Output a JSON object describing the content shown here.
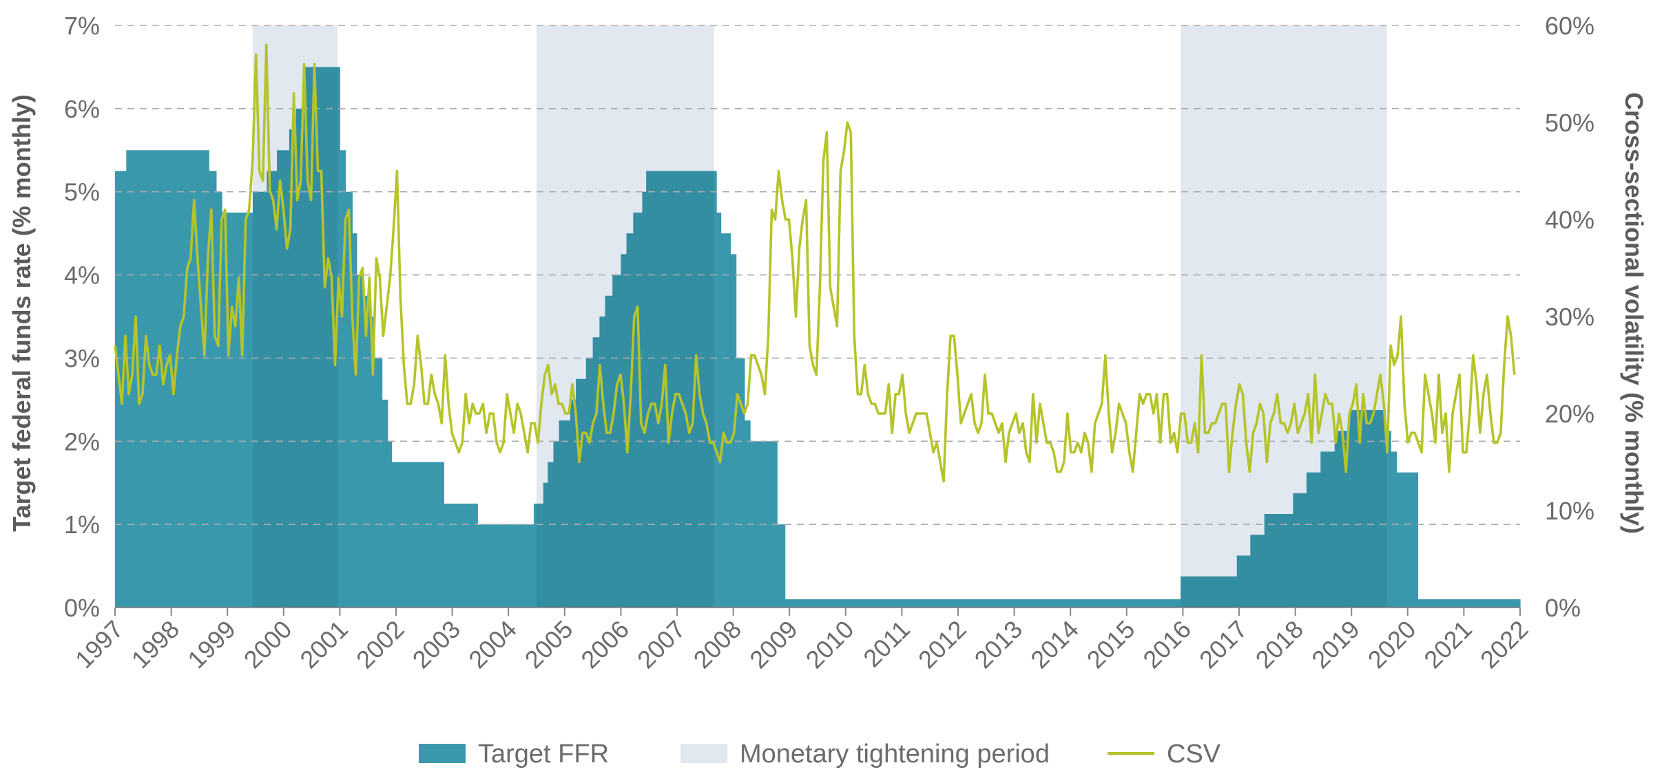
{
  "chart_data": {
    "type": "area",
    "title": "",
    "xlabel": "",
    "ylabel_left": "Target federal funds rate (% monthly)",
    "ylabel_right": "Cross-sectional volatility (% monthly)",
    "x_range": [
      1997,
      2022
    ],
    "ylim_left": [
      0,
      7
    ],
    "ylim_right": [
      0,
      60
    ],
    "x_ticks": [
      "1997",
      "1998",
      "1999",
      "2000",
      "2001",
      "2002",
      "2003",
      "2004",
      "2005",
      "2006",
      "2007",
      "2008",
      "2009",
      "2010",
      "2011",
      "2012",
      "2013",
      "2014",
      "2015",
      "2016",
      "2017",
      "2018",
      "2019",
      "2020",
      "2021",
      "2022"
    ],
    "y_ticks_left": [
      "0%",
      "1%",
      "2%",
      "3%",
      "4%",
      "5%",
      "6%",
      "7%"
    ],
    "y_ticks_right": [
      "0%",
      "10%",
      "20%",
      "30%",
      "40%",
      "50%",
      "60%"
    ],
    "grid": "horizontal dashed",
    "legend_position": "bottom",
    "colors": {
      "ffr": "#3a98ad",
      "ffr_tightening": "#348ea2",
      "tightening": "#e1e8f0",
      "csv": "#b5c42a",
      "grid": "#aaaaaa",
      "text": "#6b6b6b"
    },
    "legend": [
      {
        "key": "ffr",
        "label": "Target FFR",
        "kind": "box"
      },
      {
        "key": "tightening",
        "label": "Monetary tightening period",
        "kind": "box"
      },
      {
        "key": "csv",
        "label": "CSV",
        "kind": "line"
      }
    ],
    "tightening_periods": [
      {
        "start": 1999.45,
        "end": 2000.96
      },
      {
        "start": 2004.5,
        "end": 2007.66
      },
      {
        "start": 2015.96,
        "end": 2019.63
      }
    ],
    "ffr_steps": [
      {
        "t": 1997.0,
        "v": 5.25
      },
      {
        "t": 1997.2,
        "v": 5.5
      },
      {
        "t": 1998.67,
        "v": 5.25
      },
      {
        "t": 1998.8,
        "v": 5.0
      },
      {
        "t": 1998.9,
        "v": 4.75
      },
      {
        "t": 1999.45,
        "v": 5.0
      },
      {
        "t": 1999.7,
        "v": 5.25
      },
      {
        "t": 1999.88,
        "v": 5.5
      },
      {
        "t": 2000.1,
        "v": 5.75
      },
      {
        "t": 2000.22,
        "v": 6.0
      },
      {
        "t": 2000.38,
        "v": 6.5
      },
      {
        "t": 2001.0,
        "v": 5.5
      },
      {
        "t": 2001.1,
        "v": 5.0
      },
      {
        "t": 2001.22,
        "v": 4.5
      },
      {
        "t": 2001.3,
        "v": 4.0
      },
      {
        "t": 2001.4,
        "v": 3.75
      },
      {
        "t": 2001.55,
        "v": 3.5
      },
      {
        "t": 2001.62,
        "v": 3.0
      },
      {
        "t": 2001.75,
        "v": 2.5
      },
      {
        "t": 2001.85,
        "v": 2.0
      },
      {
        "t": 2001.92,
        "v": 1.75
      },
      {
        "t": 2002.85,
        "v": 1.25
      },
      {
        "t": 2003.45,
        "v": 1.0
      },
      {
        "t": 2004.45,
        "v": 1.25
      },
      {
        "t": 2004.62,
        "v": 1.5
      },
      {
        "t": 2004.7,
        "v": 1.75
      },
      {
        "t": 2004.8,
        "v": 2.0
      },
      {
        "t": 2004.9,
        "v": 2.25
      },
      {
        "t": 2005.1,
        "v": 2.5
      },
      {
        "t": 2005.2,
        "v": 2.75
      },
      {
        "t": 2005.38,
        "v": 3.0
      },
      {
        "t": 2005.5,
        "v": 3.25
      },
      {
        "t": 2005.62,
        "v": 3.5
      },
      {
        "t": 2005.72,
        "v": 3.75
      },
      {
        "t": 2005.85,
        "v": 4.0
      },
      {
        "t": 2006.0,
        "v": 4.25
      },
      {
        "t": 2006.1,
        "v": 4.5
      },
      {
        "t": 2006.22,
        "v": 4.75
      },
      {
        "t": 2006.38,
        "v": 5.0
      },
      {
        "t": 2006.45,
        "v": 5.25
      },
      {
        "t": 2007.7,
        "v": 4.75
      },
      {
        "t": 2007.78,
        "v": 4.5
      },
      {
        "t": 2007.95,
        "v": 4.25
      },
      {
        "t": 2008.05,
        "v": 3.0
      },
      {
        "t": 2008.2,
        "v": 2.25
      },
      {
        "t": 2008.3,
        "v": 2.0
      },
      {
        "t": 2008.78,
        "v": 1.0
      },
      {
        "t": 2008.92,
        "v": 0.1
      },
      {
        "t": 2015.96,
        "v": 0.375
      },
      {
        "t": 2016.96,
        "v": 0.625
      },
      {
        "t": 2017.2,
        "v": 0.875
      },
      {
        "t": 2017.45,
        "v": 1.125
      },
      {
        "t": 2017.96,
        "v": 1.375
      },
      {
        "t": 2018.2,
        "v": 1.625
      },
      {
        "t": 2018.45,
        "v": 1.875
      },
      {
        "t": 2018.7,
        "v": 2.125
      },
      {
        "t": 2018.96,
        "v": 2.375
      },
      {
        "t": 2019.6,
        "v": 2.125
      },
      {
        "t": 2019.7,
        "v": 1.875
      },
      {
        "t": 2019.8,
        "v": 1.625
      },
      {
        "t": 2020.18,
        "v": 0.1
      },
      {
        "t": 2022.0,
        "v": 0.1
      }
    ],
    "csv_x_start": 1997.0,
    "csv_x_end": 2021.9,
    "csv_values": [
      27,
      24,
      21,
      28,
      22,
      24,
      30,
      21,
      22,
      28,
      25,
      24,
      24,
      27,
      23,
      25,
      26,
      22,
      26,
      29,
      30,
      35,
      36,
      42,
      36,
      31,
      26,
      36,
      41,
      28,
      27,
      40,
      41,
      26,
      31,
      29,
      34,
      26,
      40,
      41,
      46,
      57,
      45,
      44,
      58,
      43,
      42,
      39,
      44,
      41,
      37,
      39,
      53,
      42,
      44,
      56,
      44,
      42,
      56,
      45,
      45,
      33,
      36,
      34,
      25,
      34,
      30,
      40,
      41,
      30,
      24,
      34,
      35,
      28,
      34,
      24,
      36,
      34,
      28,
      31,
      34,
      39,
      45,
      32,
      25,
      21,
      21,
      23,
      28,
      25,
      21,
      21,
      24,
      22,
      21,
      19,
      26,
      21,
      18,
      17,
      16,
      17,
      22,
      19,
      21,
      20,
      20,
      21,
      18,
      20,
      20,
      17,
      16,
      17,
      22,
      20,
      18,
      21,
      20,
      18,
      16,
      19,
      19,
      17,
      21,
      24,
      25,
      22,
      23,
      21,
      21,
      20,
      20,
      23,
      20,
      15,
      18,
      18,
      17,
      19,
      20,
      25,
      21,
      18,
      18,
      20,
      23,
      24,
      21,
      16,
      22,
      30,
      31,
      19,
      18,
      20,
      21,
      21,
      19,
      21,
      25,
      17,
      20,
      22,
      22,
      21,
      20,
      18,
      19,
      26,
      22,
      20,
      19,
      17,
      17,
      16,
      15,
      18,
      17,
      17,
      18,
      22,
      21,
      20,
      21,
      26,
      26,
      25,
      24,
      22,
      28,
      41,
      40,
      45,
      42,
      40,
      40,
      36,
      30,
      37,
      40,
      42,
      27,
      25,
      24,
      33,
      46,
      49,
      33,
      31,
      29,
      45,
      47,
      50,
      49,
      28,
      22,
      22,
      25,
      22,
      21,
      21,
      20,
      20,
      20,
      23,
      18,
      22,
      22,
      24,
      20,
      18,
      19,
      20,
      20,
      20,
      20,
      18,
      16,
      17,
      15,
      13,
      22,
      28,
      28,
      24,
      19,
      20,
      21,
      22,
      19,
      18,
      19,
      24,
      20,
      20,
      19,
      18,
      19,
      15,
      18,
      19,
      20,
      18,
      19,
      16,
      15,
      22,
      17,
      21,
      19,
      17,
      17,
      16,
      14,
      14,
      15,
      20,
      16,
      16,
      17,
      16,
      18,
      17,
      14,
      19,
      20,
      21,
      26,
      20,
      16,
      18,
      21,
      20,
      19,
      16,
      14,
      18,
      22,
      21,
      22,
      22,
      20,
      22,
      17,
      22,
      22,
      17,
      18,
      16,
      20,
      20,
      17,
      17,
      19,
      16,
      26,
      18,
      18,
      19,
      19,
      20,
      21,
      21,
      14,
      18,
      21,
      23,
      22,
      17,
      14,
      18,
      19,
      21,
      20,
      15,
      19,
      20,
      22,
      19,
      19,
      18,
      19,
      21,
      18,
      19,
      20,
      22,
      17,
      24,
      18,
      20,
      22,
      21,
      21,
      17,
      20,
      18,
      14,
      20,
      21,
      23,
      17,
      22,
      19,
      19,
      20,
      22,
      24,
      21,
      16,
      27,
      25,
      26,
      30,
      21,
      17,
      18,
      18,
      17,
      16,
      24,
      22,
      20,
      17,
      24,
      18,
      20,
      14,
      20,
      22,
      24,
      16,
      16,
      20,
      26,
      23,
      18,
      22,
      24,
      20,
      17,
      17,
      18,
      25,
      30,
      28,
      24
    ]
  }
}
